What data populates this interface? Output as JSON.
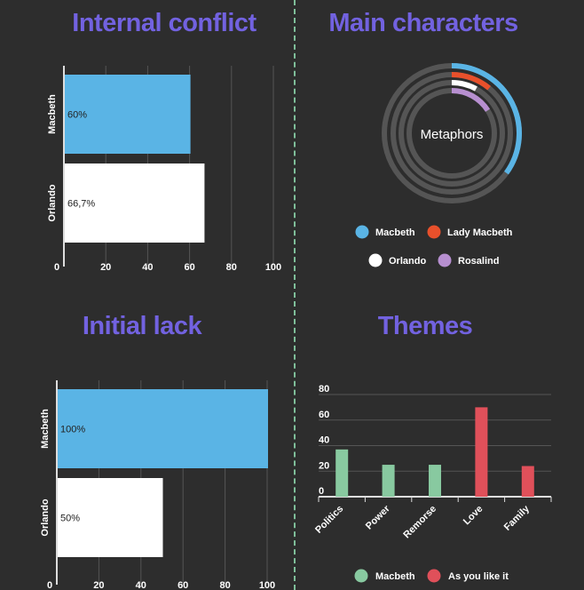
{
  "titles": {
    "internal_conflict": "Internal conflict",
    "main_characters": "Main characters",
    "initial_lack": "Initial lack",
    "themes": "Themes"
  },
  "chart_data": [
    {
      "id": "internal_conflict",
      "type": "bar",
      "orientation": "horizontal",
      "title": "Internal conflict",
      "categories": [
        "Macbeth",
        "Orlando"
      ],
      "values": [
        60,
        66.7
      ],
      "data_labels": [
        "60%",
        "66,7%"
      ],
      "colors": [
        "#5ab4e5",
        "#ffffff"
      ],
      "xlim": [
        0,
        100
      ],
      "xticks": [
        "0",
        "20",
        "40",
        "60",
        "80",
        "100"
      ],
      "grid": true
    },
    {
      "id": "main_characters",
      "type": "pie",
      "variant": "radial-bar",
      "title": "Main characters",
      "center_label": "Metaphors",
      "series": [
        {
          "name": "Macbeth",
          "value": 0.35,
          "color": "#5ab4e5"
        },
        {
          "name": "Lady Macbeth",
          "value": 0.11,
          "color": "#e8502b"
        },
        {
          "name": "Orlando",
          "value": 0.08,
          "color": "#ffffff"
        },
        {
          "name": "Rosalind",
          "value": 0.16,
          "color": "#b78fd0"
        }
      ],
      "track_color": "#555555",
      "legend_position": "bottom"
    },
    {
      "id": "initial_lack",
      "type": "bar",
      "orientation": "horizontal",
      "title": "Initial lack",
      "categories": [
        "Macbeth",
        "Orlando"
      ],
      "values": [
        100,
        50
      ],
      "data_labels": [
        "100%",
        "50%"
      ],
      "colors": [
        "#5ab4e5",
        "#ffffff"
      ],
      "xlim": [
        0,
        100
      ],
      "xticks": [
        "0",
        "20",
        "40",
        "60",
        "80",
        "100"
      ],
      "grid": true
    },
    {
      "id": "themes",
      "type": "bar",
      "title": "Themes",
      "categories": [
        "Politics",
        "Power",
        "Remorse",
        "Love",
        "Family"
      ],
      "series": [
        {
          "name": "Macbeth",
          "values": [
            37,
            25,
            25,
            null,
            null
          ],
          "color": "#88c9a0"
        },
        {
          "name": "As you like it",
          "values": [
            null,
            null,
            null,
            70,
            24
          ],
          "color": "#e0505a"
        }
      ],
      "ylim": [
        0,
        80
      ],
      "yticks": [
        "0",
        "20",
        "40",
        "60",
        "80"
      ],
      "grid": true,
      "legend_position": "bottom"
    }
  ]
}
